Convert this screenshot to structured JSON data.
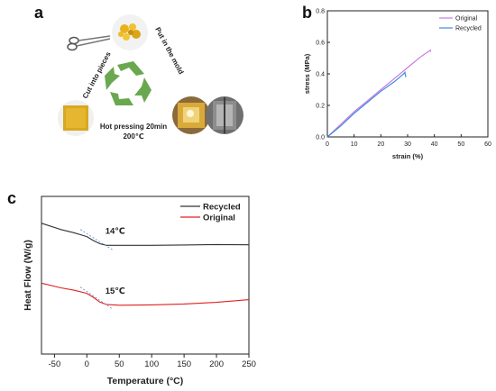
{
  "panels": {
    "a": "a",
    "b": "b",
    "c": "c"
  },
  "scheme": {
    "step_cut": "Cut into pieces",
    "step_mold": "Put in the mold",
    "step_press_line1": "Hot pressing 20min",
    "step_press_line2": "200℃",
    "icons": [
      "scissors-icon",
      "recycle-arrows-icon"
    ],
    "colors": {
      "recycle_green": "#6aa84f",
      "sample_yellow": "#e7b21a"
    }
  },
  "chart_data": [
    {
      "id": "b",
      "type": "line",
      "xlabel": "strain (%)",
      "ylabel": "stress (MPa)",
      "xlim": [
        0,
        60
      ],
      "ylim": [
        0,
        0.8
      ],
      "xticks": [
        0,
        10,
        20,
        30,
        40,
        50,
        60
      ],
      "yticks": [
        0.0,
        0.2,
        0.4,
        0.6,
        0.8
      ],
      "legend": "top-right",
      "series": [
        {
          "name": "Original",
          "color": "#c77be0",
          "x": [
            0,
            5,
            10,
            15,
            20,
            25,
            30,
            35,
            38.5,
            38.6
          ],
          "y": [
            0,
            0.08,
            0.16,
            0.23,
            0.3,
            0.37,
            0.44,
            0.51,
            0.55,
            0.54
          ]
        },
        {
          "name": "Recycled",
          "color": "#3d8be0",
          "x": [
            0,
            5,
            10,
            15,
            20,
            25,
            28.5,
            29,
            29.3
          ],
          "y": [
            0,
            0.07,
            0.15,
            0.22,
            0.29,
            0.35,
            0.4,
            0.41,
            0.38
          ]
        }
      ]
    },
    {
      "id": "c",
      "type": "line",
      "xlabel": "Temperature (°C)",
      "ylabel": "Heat Flow (W/g)",
      "xlim": [
        -70,
        250
      ],
      "xticks": [
        -50,
        0,
        50,
        100,
        150,
        200,
        250
      ],
      "y_unlabeled": true,
      "legend": "top-right",
      "series": [
        {
          "name": "Recycled",
          "color": "#333333",
          "x": [
            -70,
            -40,
            -20,
            0,
            10,
            20,
            30,
            50,
            100,
            150,
            200,
            250
          ],
          "y": [
            0.83,
            0.79,
            0.77,
            0.745,
            0.72,
            0.7,
            0.69,
            0.69,
            0.69,
            0.692,
            0.695,
            0.693
          ]
        },
        {
          "name": "Original",
          "color": "#e02020",
          "x": [
            -70,
            -40,
            -20,
            0,
            10,
            20,
            30,
            50,
            100,
            150,
            200,
            250
          ],
          "y": [
            0.45,
            0.42,
            0.405,
            0.385,
            0.36,
            0.33,
            0.315,
            0.31,
            0.312,
            0.318,
            0.328,
            0.345
          ]
        }
      ],
      "annotations": [
        {
          "text": "14℃",
          "x": 20,
          "y": 0.74
        },
        {
          "text": "15℃",
          "x": 20,
          "y": 0.36
        }
      ]
    }
  ]
}
